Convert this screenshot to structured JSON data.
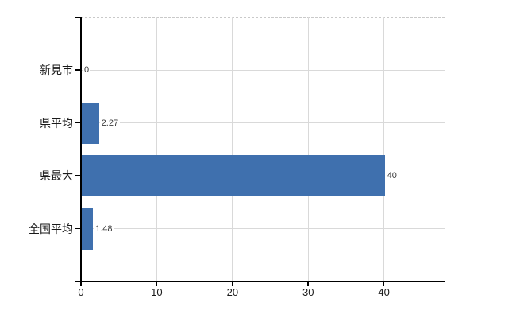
{
  "window": {
    "background_color": "#ffffff"
  },
  "chart_data": {
    "type": "bar",
    "orientation": "horizontal",
    "title": "",
    "xlabel": "",
    "ylabel": "",
    "categories": [
      "新見市",
      "県平均",
      "県最大",
      "全国平均"
    ],
    "values": [
      0,
      2.27,
      40,
      1.48
    ],
    "value_labels": [
      "0",
      "2.27",
      "40",
      "1.48"
    ],
    "xticks": [
      0,
      10,
      20,
      30,
      40
    ],
    "xtick_labels": [
      "0",
      "10",
      "20",
      "30",
      "40"
    ],
    "xlim": [
      0,
      48
    ],
    "grid": true,
    "legend": false,
    "bar_color": "#3f70ae",
    "grid_color": "#d9d9d9",
    "axis_color": "#000000",
    "category_label_color": "#1a1a1a",
    "tick_label_color": "#1a1a1a",
    "value_label_color": "#3a3a3a"
  }
}
